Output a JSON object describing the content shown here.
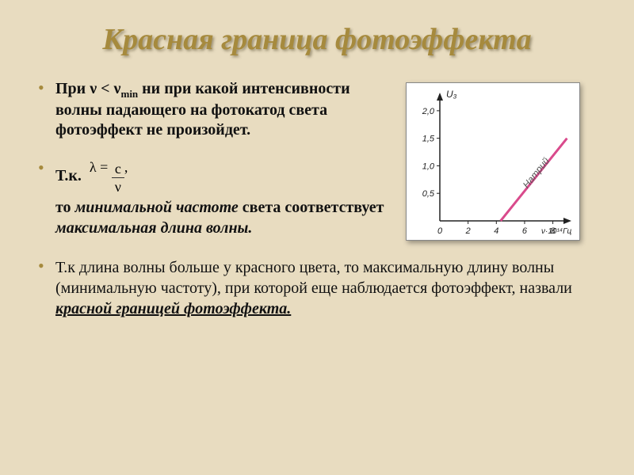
{
  "title": "Красная граница фотоэффекта",
  "bullet1": {
    "pre": "При ",
    "nu": "ν",
    "lt": " < ",
    "nu2": "ν",
    "sub": "min",
    "post": " ни при какой интенсивности волны падающего на фотокатод света фотоэффект не произойдет."
  },
  "bullet2": {
    "pre": "Т.к.",
    "lambda": "λ",
    "eq": " = ",
    "num": "c",
    "den": "ν",
    "comma": ",",
    "line2a": "то ",
    "line2b": "минимальной частоте",
    "line2c": " света соответствует ",
    "line2d": "максимальная длина волны."
  },
  "bullet3": {
    "text1": "Т.к длина волны больше у красного цвета, то максимальную длину волны (минимальную частоту), при которой еще наблюдается фотоэффект, назвали ",
    "text2": "красной границей фотоэффекта."
  },
  "chart": {
    "type": "line",
    "ylabel": "U₃",
    "xlabel": "ν·10¹⁴Гц",
    "xlim": [
      0,
      9.2
    ],
    "ylim": [
      0,
      2.3
    ],
    "xticks": [
      0,
      2,
      4,
      6,
      8
    ],
    "yticks": [
      0.5,
      1.0,
      1.5,
      2.0
    ],
    "yticklabels": [
      "0,5",
      "1,0",
      "1,5",
      "2,0"
    ],
    "line": {
      "label": "Натрий",
      "color": "#d94a8c",
      "width": 3,
      "points": [
        [
          4.3,
          0
        ],
        [
          9.0,
          1.5
        ]
      ]
    },
    "axis_color": "#222",
    "tick_color": "#222",
    "font_size_ticks": 11,
    "font_size_label": 12,
    "background": "#ffffff"
  }
}
